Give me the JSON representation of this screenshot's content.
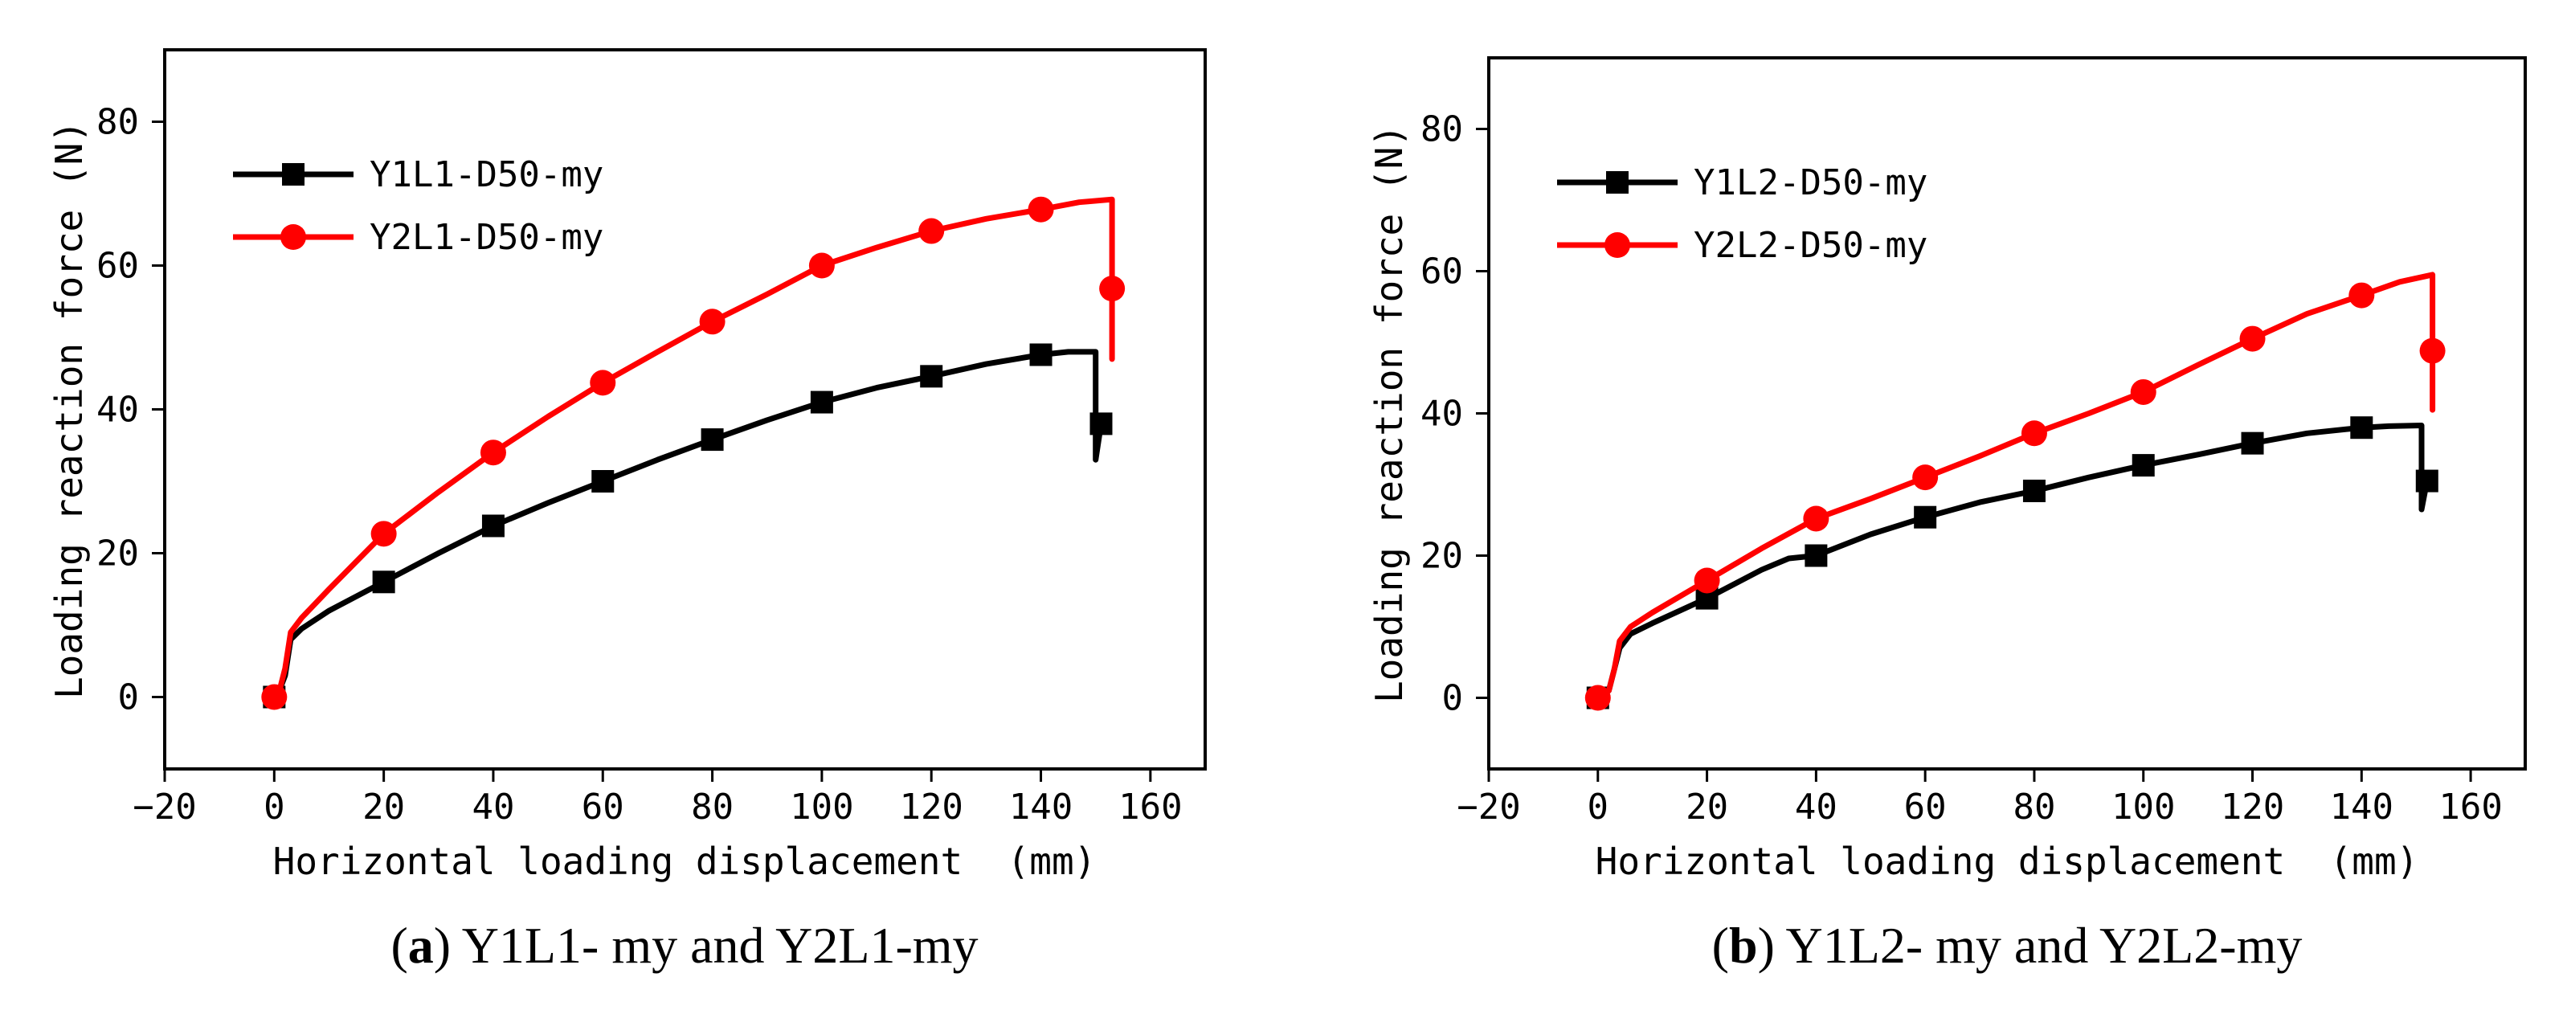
{
  "figure": {
    "panels": [
      {
        "caption": {
          "open": "(",
          "letter": "a",
          "close": ")",
          "text": " Y1L1- my and Y2L1-my"
        },
        "xlabel": "Horizontal loading displacement  (mm)",
        "ylabel": "Loading reaction force (N)",
        "legend": [
          "Y1L1-D50-my",
          "Y2L1-D50-my"
        ]
      },
      {
        "caption": {
          "open": "(",
          "letter": "b",
          "close": ")",
          "text": " Y1L2- my and Y2L2-my"
        },
        "xlabel": "Horizontal loading displacement  (mm)",
        "ylabel": "Loading reaction force (N)",
        "legend": [
          "Y1L2-D50-my",
          "Y2L2-D50-my"
        ]
      }
    ]
  },
  "chart_data": [
    {
      "type": "line",
      "title": "(a) Y1L1- my and Y2L1-my",
      "xlabel": "Horizontal loading displacement  (mm)",
      "ylabel": "Loading reaction force (N)",
      "xlim": [
        -20,
        170
      ],
      "ylim": [
        -10,
        90
      ],
      "xticks": [
        -20,
        0,
        20,
        40,
        60,
        80,
        100,
        120,
        140,
        160
      ],
      "yticks": [
        0,
        20,
        40,
        60,
        80
      ],
      "legend_position": "top-left",
      "series": [
        {
          "name": "Y1L1-D50-my",
          "color": "#000000",
          "marker": "square",
          "x": [
            0,
            1,
            2,
            3,
            5,
            10,
            20,
            30,
            40,
            50,
            60,
            70,
            80,
            90,
            100,
            110,
            120,
            130,
            140,
            145,
            150,
            150,
            150,
            151
          ],
          "y": [
            0,
            1,
            3,
            8,
            9.5,
            12,
            16,
            20,
            23.8,
            27,
            30,
            33,
            35.8,
            38.5,
            41,
            43,
            44.6,
            46.3,
            47.6,
            48,
            48,
            40,
            33,
            38
          ],
          "marker_x": [
            0,
            20,
            40,
            60,
            80,
            100,
            120,
            140,
            151
          ],
          "marker_y": [
            0,
            16,
            23.8,
            30,
            35.8,
            41,
            44.6,
            47.6,
            38
          ]
        },
        {
          "name": "Y2L1-D50-my",
          "color": "#ff0000",
          "marker": "circle",
          "x": [
            0,
            1,
            2,
            3,
            5,
            10,
            20,
            30,
            40,
            50,
            60,
            70,
            80,
            90,
            100,
            110,
            120,
            130,
            140,
            147,
            153,
            153,
            153,
            153
          ],
          "y": [
            0,
            1,
            4,
            9,
            11,
            15,
            22.7,
            28.5,
            34,
            39,
            43.7,
            48,
            52.2,
            56,
            60,
            62.5,
            64.8,
            66.5,
            67.8,
            68.8,
            69.2,
            60,
            47,
            56.8
          ],
          "marker_x": [
            0,
            20,
            40,
            60,
            80,
            100,
            120,
            140,
            153
          ],
          "marker_y": [
            0,
            22.7,
            34,
            43.7,
            52.2,
            60,
            64.8,
            67.8,
            56.8
          ]
        }
      ]
    },
    {
      "type": "line",
      "title": "(b) Y1L2- my and Y2L2-my",
      "xlabel": "Horizontal loading displacement  (mm)",
      "ylabel": "Loading reaction force (N)",
      "xlim": [
        -20,
        170
      ],
      "ylim": [
        -10,
        90
      ],
      "xticks": [
        -20,
        0,
        20,
        40,
        60,
        80,
        100,
        120,
        140,
        160
      ],
      "yticks": [
        0,
        20,
        40,
        60,
        80
      ],
      "legend_position": "top-left",
      "series": [
        {
          "name": "Y1L2-D50-my",
          "color": "#000000",
          "marker": "square",
          "x": [
            0,
            2,
            3,
            4,
            6,
            10,
            20,
            30,
            35,
            40,
            50,
            60,
            70,
            80,
            90,
            100,
            110,
            120,
            130,
            140,
            145,
            151,
            151,
            151,
            152
          ],
          "y": [
            0,
            1,
            4,
            7,
            9,
            10.5,
            14,
            18,
            19.6,
            20,
            23,
            25.4,
            27.5,
            29.1,
            31,
            32.7,
            34.2,
            35.8,
            37.2,
            38,
            38.2,
            38.3,
            34,
            26.5,
            30.5
          ],
          "marker_x": [
            0,
            20,
            40,
            60,
            80,
            100,
            120,
            140,
            152
          ],
          "marker_y": [
            0,
            14,
            20,
            25.4,
            29.1,
            32.7,
            35.8,
            38,
            30.5
          ]
        },
        {
          "name": "Y2L2-D50-my",
          "color": "#ff0000",
          "marker": "circle",
          "x": [
            0,
            2,
            3,
            4,
            6,
            10,
            20,
            30,
            40,
            50,
            60,
            70,
            80,
            90,
            100,
            110,
            120,
            130,
            140,
            147,
            153,
            153,
            153,
            153
          ],
          "y": [
            0,
            1,
            4,
            8,
            10,
            12,
            16.5,
            21,
            25.2,
            28,
            31,
            34,
            37.2,
            40,
            43,
            46.8,
            50.5,
            54,
            56.6,
            58.5,
            59.5,
            52,
            40.5,
            48.8
          ],
          "marker_x": [
            0,
            20,
            40,
            60,
            80,
            100,
            120,
            140,
            153
          ],
          "marker_y": [
            0,
            16.5,
            25.2,
            31,
            37.2,
            43,
            50.5,
            56.6,
            48.8
          ]
        }
      ]
    }
  ]
}
